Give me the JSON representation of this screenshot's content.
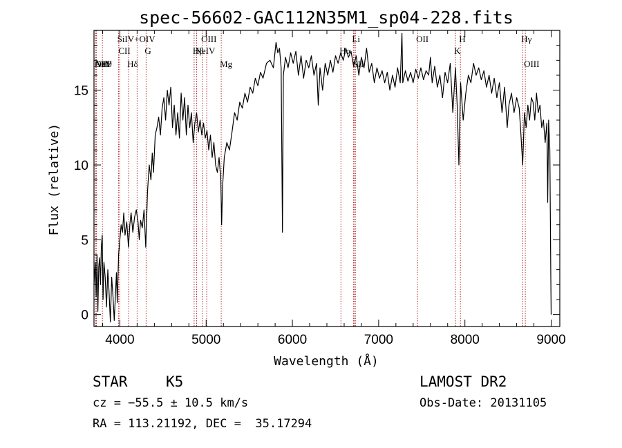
{
  "chart_data": {
    "type": "line",
    "title": "spec-56602-GAC112N35M1_sp04-228.fits",
    "xlabel": "Wavelength (Å)",
    "ylabel": "Flux (relative)",
    "xlim": [
      3700,
      9100
    ],
    "ylim": [
      -0.8,
      19
    ],
    "x_ticks": [
      4000,
      5000,
      6000,
      7000,
      8000,
      9000
    ],
    "y_ticks": [
      0,
      5,
      10,
      15
    ],
    "grid": false,
    "series": [
      {
        "points": [
          [
            3700,
            2.0
          ],
          [
            3715,
            3.5
          ],
          [
            3725,
            1.2
          ],
          [
            3735,
            4.0
          ],
          [
            3745,
            0.2
          ],
          [
            3755,
            3.2
          ],
          [
            3765,
            3.8
          ],
          [
            3775,
            2.0
          ],
          [
            3785,
            4.5
          ],
          [
            3795,
            5.3
          ],
          [
            3805,
            1.0
          ],
          [
            3815,
            3.5
          ],
          [
            3830,
            2.5
          ],
          [
            3845,
            0.5
          ],
          [
            3860,
            3.0
          ],
          [
            3875,
            1.5
          ],
          [
            3890,
            -0.5
          ],
          [
            3905,
            2.5
          ],
          [
            3920,
            1.2
          ],
          [
            3935,
            -0.4
          ],
          [
            3950,
            1.5
          ],
          [
            3960,
            2.8
          ],
          [
            3970,
            0.8
          ],
          [
            3985,
            4.0
          ],
          [
            4000,
            5.0
          ],
          [
            4015,
            6.0
          ],
          [
            4030,
            5.5
          ],
          [
            4045,
            6.8
          ],
          [
            4060,
            5.3
          ],
          [
            4080,
            6.2
          ],
          [
            4100,
            4.5
          ],
          [
            4115,
            6.0
          ],
          [
            4130,
            6.8
          ],
          [
            4150,
            5.5
          ],
          [
            4170,
            6.5
          ],
          [
            4190,
            7.0
          ],
          [
            4210,
            6.2
          ],
          [
            4225,
            5.0
          ],
          [
            4240,
            6.3
          ],
          [
            4260,
            5.8
          ],
          [
            4280,
            7.0
          ],
          [
            4300,
            4.5
          ],
          [
            4320,
            8.2
          ],
          [
            4340,
            10.0
          ],
          [
            4360,
            9.0
          ],
          [
            4375,
            10.8
          ],
          [
            4390,
            9.5
          ],
          [
            4410,
            12.0
          ],
          [
            4430,
            12.5
          ],
          [
            4450,
            13.2
          ],
          [
            4470,
            12.0
          ],
          [
            4490,
            13.8
          ],
          [
            4510,
            14.5
          ],
          [
            4530,
            13.0
          ],
          [
            4550,
            15.0
          ],
          [
            4570,
            14.0
          ],
          [
            4590,
            15.2
          ],
          [
            4610,
            12.5
          ],
          [
            4630,
            14.0
          ],
          [
            4650,
            12.0
          ],
          [
            4670,
            13.5
          ],
          [
            4690,
            11.8
          ],
          [
            4710,
            14.8
          ],
          [
            4730,
            13.0
          ],
          [
            4750,
            14.5
          ],
          [
            4770,
            12.0
          ],
          [
            4790,
            14.0
          ],
          [
            4810,
            12.5
          ],
          [
            4830,
            13.5
          ],
          [
            4850,
            11.5
          ],
          [
            4870,
            12.8
          ],
          [
            4890,
            13.5
          ],
          [
            4910,
            12.2
          ],
          [
            4930,
            13.0
          ],
          [
            4950,
            12.0
          ],
          [
            4970,
            12.8
          ],
          [
            4990,
            11.8
          ],
          [
            5010,
            12.3
          ],
          [
            5030,
            11.0
          ],
          [
            5050,
            12.0
          ],
          [
            5070,
            10.5
          ],
          [
            5090,
            11.5
          ],
          [
            5110,
            10.0
          ],
          [
            5130,
            9.5
          ],
          [
            5150,
            10.5
          ],
          [
            5170,
            9.0
          ],
          [
            5180,
            6.0
          ],
          [
            5190,
            8.5
          ],
          [
            5210,
            10.5
          ],
          [
            5240,
            11.5
          ],
          [
            5270,
            11.0
          ],
          [
            5300,
            12.2
          ],
          [
            5330,
            13.5
          ],
          [
            5360,
            13.0
          ],
          [
            5390,
            14.2
          ],
          [
            5420,
            13.8
          ],
          [
            5450,
            14.8
          ],
          [
            5480,
            14.2
          ],
          [
            5510,
            15.2
          ],
          [
            5540,
            14.8
          ],
          [
            5570,
            15.8
          ],
          [
            5600,
            15.3
          ],
          [
            5630,
            16.2
          ],
          [
            5660,
            15.8
          ],
          [
            5700,
            16.8
          ],
          [
            5740,
            17.0
          ],
          [
            5780,
            16.5
          ],
          [
            5810,
            18.2
          ],
          [
            5830,
            17.5
          ],
          [
            5850,
            17.8
          ],
          [
            5870,
            16.5
          ],
          [
            5885,
            5.5
          ],
          [
            5895,
            16.0
          ],
          [
            5920,
            17.2
          ],
          [
            5950,
            16.5
          ],
          [
            5980,
            17.5
          ],
          [
            6010,
            16.8
          ],
          [
            6040,
            17.6
          ],
          [
            6070,
            16.0
          ],
          [
            6100,
            17.3
          ],
          [
            6130,
            15.8
          ],
          [
            6160,
            17.0
          ],
          [
            6190,
            16.5
          ],
          [
            6220,
            17.3
          ],
          [
            6250,
            16.0
          ],
          [
            6280,
            16.8
          ],
          [
            6300,
            14.0
          ],
          [
            6320,
            16.5
          ],
          [
            6350,
            15.0
          ],
          [
            6380,
            16.8
          ],
          [
            6410,
            16.0
          ],
          [
            6440,
            17.0
          ],
          [
            6470,
            16.2
          ],
          [
            6500,
            17.3
          ],
          [
            6530,
            16.8
          ],
          [
            6560,
            17.5
          ],
          [
            6590,
            17.0
          ],
          [
            6620,
            17.8
          ],
          [
            6650,
            17.2
          ],
          [
            6680,
            17.6
          ],
          [
            6710,
            16.6
          ],
          [
            6740,
            17.3
          ],
          [
            6770,
            16.0
          ],
          [
            6800,
            17.2
          ],
          [
            6830,
            16.5
          ],
          [
            6860,
            17.8
          ],
          [
            6890,
            16.2
          ],
          [
            6920,
            16.8
          ],
          [
            6950,
            15.5
          ],
          [
            6980,
            16.5
          ],
          [
            7010,
            15.8
          ],
          [
            7040,
            16.3
          ],
          [
            7070,
            15.5
          ],
          [
            7100,
            16.2
          ],
          [
            7130,
            15.0
          ],
          [
            7160,
            16.0
          ],
          [
            7190,
            15.2
          ],
          [
            7220,
            16.5
          ],
          [
            7250,
            15.5
          ],
          [
            7270,
            18.8
          ],
          [
            7280,
            15.5
          ],
          [
            7310,
            16.3
          ],
          [
            7340,
            15.6
          ],
          [
            7370,
            16.2
          ],
          [
            7400,
            15.5
          ],
          [
            7430,
            16.4
          ],
          [
            7460,
            15.8
          ],
          [
            7490,
            16.5
          ],
          [
            7520,
            15.7
          ],
          [
            7550,
            16.3
          ],
          [
            7580,
            16.0
          ],
          [
            7600,
            17.2
          ],
          [
            7620,
            15.5
          ],
          [
            7650,
            16.6
          ],
          [
            7680,
            15.2
          ],
          [
            7710,
            16.0
          ],
          [
            7740,
            14.5
          ],
          [
            7770,
            16.2
          ],
          [
            7800,
            15.5
          ],
          [
            7830,
            16.8
          ],
          [
            7860,
            13.5
          ],
          [
            7890,
            16.5
          ],
          [
            7910,
            14.0
          ],
          [
            7930,
            10.0
          ],
          [
            7950,
            15.5
          ],
          [
            7980,
            13.0
          ],
          [
            8010,
            14.8
          ],
          [
            8040,
            16.0
          ],
          [
            8070,
            15.5
          ],
          [
            8100,
            16.8
          ],
          [
            8130,
            16.0
          ],
          [
            8160,
            16.5
          ],
          [
            8190,
            15.7
          ],
          [
            8220,
            16.3
          ],
          [
            8250,
            15.2
          ],
          [
            8280,
            16.0
          ],
          [
            8310,
            14.8
          ],
          [
            8340,
            15.8
          ],
          [
            8370,
            14.5
          ],
          [
            8400,
            15.5
          ],
          [
            8430,
            13.5
          ],
          [
            8460,
            15.2
          ],
          [
            8490,
            12.5
          ],
          [
            8510,
            14.0
          ],
          [
            8540,
            14.8
          ],
          [
            8570,
            13.5
          ],
          [
            8600,
            14.5
          ],
          [
            8630,
            13.8
          ],
          [
            8650,
            12.0
          ],
          [
            8670,
            10.0
          ],
          [
            8690,
            13.5
          ],
          [
            8710,
            12.5
          ],
          [
            8730,
            14.0
          ],
          [
            8750,
            13.0
          ],
          [
            8770,
            14.5
          ],
          [
            8790,
            14.2
          ],
          [
            8810,
            13.0
          ],
          [
            8830,
            14.8
          ],
          [
            8850,
            13.5
          ],
          [
            8870,
            14.0
          ],
          [
            8890,
            12.5
          ],
          [
            8910,
            13.0
          ],
          [
            8930,
            11.5
          ],
          [
            8950,
            12.8
          ],
          [
            8960,
            7.5
          ],
          [
            8970,
            13.0
          ],
          [
            8985,
            11.0
          ],
          [
            8995,
            3.0
          ],
          [
            9000,
            0.0
          ]
        ]
      }
    ],
    "spectral_lines": [
      {
        "label": "AlII",
        "wl": 3720,
        "pos": "low"
      },
      {
        "label": "NeV",
        "wl": 3726,
        "pos": "low"
      },
      {
        "label": "OII",
        "wl": 3728,
        "pos": "low"
      },
      {
        "label": "Hθ",
        "wl": 3798,
        "pos": "low"
      },
      {
        "label": "SiIV+OIV",
        "wl": 3985,
        "pos": "high"
      },
      {
        "label": "CII",
        "wl": 4000,
        "pos": "mid"
      },
      {
        "label": "Hδ",
        "wl": 4101,
        "pos": "low"
      },
      {
        "label": "",
        "wl": 4200,
        "pos": "none"
      },
      {
        "label": "G",
        "wl": 4304,
        "pos": "mid"
      },
      {
        "label": "Hβ",
        "wl": 4861,
        "pos": "mid"
      },
      {
        "label": "NeIV",
        "wl": 4890,
        "pos": "mid"
      },
      {
        "label": "OIII",
        "wl": 4959,
        "pos": "high"
      },
      {
        "label": "",
        "wl": 5007,
        "pos": "none"
      },
      {
        "label": "Mg",
        "wl": 5175,
        "pos": "low"
      },
      {
        "label": "Hα",
        "wl": 6563,
        "pos": "mid"
      },
      {
        "label": "Li",
        "wl": 6708,
        "pos": "high"
      },
      {
        "label": "SII",
        "wl": 6716,
        "pos": "low"
      },
      {
        "label": "",
        "wl": 6731,
        "pos": "none"
      },
      {
        "label": "OII",
        "wl": 7450,
        "pos": "high"
      },
      {
        "label": "K",
        "wl": 7890,
        "pos": "mid"
      },
      {
        "label": "H",
        "wl": 7948,
        "pos": "high"
      },
      {
        "label": "Hγ",
        "wl": 8670,
        "pos": "high"
      },
      {
        "label": "OIII",
        "wl": 8700,
        "pos": "low"
      }
    ]
  },
  "info": {
    "object_type": "STAR",
    "subclass": "K5",
    "survey": "LAMOST DR2",
    "cz": "cz = −55.5 ± 10.5 km/s",
    "coords": "RA = 113.21192, DEC =  35.17294",
    "obs_date": "Obs-Date: 20131105"
  }
}
